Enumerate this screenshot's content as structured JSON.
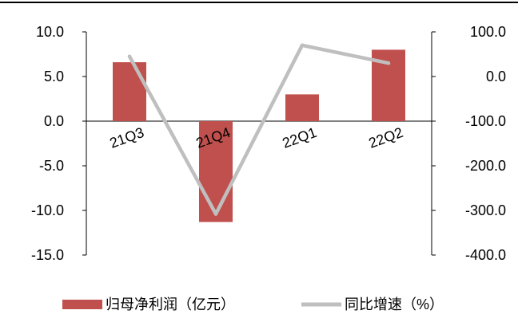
{
  "chart_data": {
    "type": "bar",
    "categories": [
      "21Q3",
      "21Q4",
      "22Q1",
      "22Q2"
    ],
    "series": [
      {
        "name": "归母净利润（亿元）",
        "type": "bar",
        "axis": "left",
        "color": "#c0504d",
        "values": [
          6.6,
          -11.3,
          3.0,
          8.0
        ]
      },
      {
        "name": "同比增速（%）",
        "type": "line",
        "axis": "right",
        "color": "#bfbfbf",
        "values": [
          45.0,
          -308.0,
          70.0,
          30.0
        ]
      }
    ],
    "y_left": {
      "min": -15,
      "max": 10,
      "ticks": [
        "10.0",
        "5.0",
        "0.0",
        "-5.0",
        "-10.0",
        "-15.0"
      ]
    },
    "y_right": {
      "min": -400,
      "max": 100,
      "ticks": [
        "100.0",
        "0.0",
        "-100.0",
        "-200.0",
        "-300.0",
        "-400.0"
      ]
    },
    "legend": {
      "position": "bottom"
    },
    "grid": false
  }
}
